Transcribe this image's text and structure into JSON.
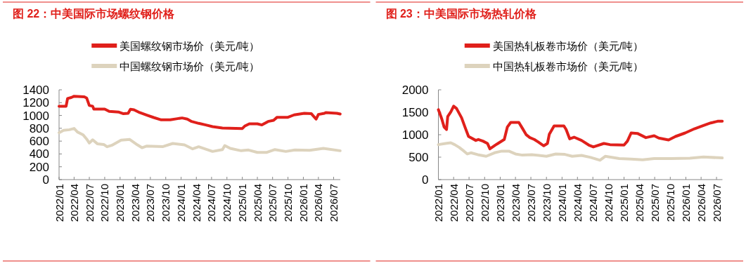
{
  "chart_data": [
    {
      "type": "line",
      "title": "图 22：中美国际市场螺纹钢价格",
      "legend": "top",
      "grid": false,
      "xlim": [
        "2022-01-01",
        "2026-08-10"
      ],
      "ylim": [
        0,
        1400
      ],
      "yticks": [
        0,
        200,
        400,
        600,
        800,
        1000,
        1200,
        1400
      ],
      "xticks": [
        {
          "value": "2022-01",
          "label": "2022/01"
        },
        {
          "value": "2022-04",
          "label": "2022/04"
        },
        {
          "value": "2022-07",
          "label": "2022/07"
        },
        {
          "value": "2022-10",
          "label": "2022/10"
        },
        {
          "value": "2023-01",
          "label": "2023/01"
        },
        {
          "value": "2023-04",
          "label": "2023/04"
        },
        {
          "value": "2023-07",
          "label": "2023/07"
        },
        {
          "value": "2023-10",
          "label": "2023/10"
        },
        {
          "value": "2024-01",
          "label": "2024/01"
        },
        {
          "value": "2024-04",
          "label": "2024/04"
        },
        {
          "value": "2024-07",
          "label": "2024/07"
        },
        {
          "value": "2024-10",
          "label": "2024/10"
        },
        {
          "value": "2025-01",
          "label": "2025/01"
        },
        {
          "value": "2025-04",
          "label": "2025/04"
        },
        {
          "value": "2025-07",
          "label": "2025/07"
        },
        {
          "value": "2025-10",
          "label": "2025/10"
        },
        {
          "value": "2026-01",
          "label": "2026/01"
        },
        {
          "value": "2026-04",
          "label": "2026/04"
        },
        {
          "value": "2026-07",
          "label": "2026/07"
        }
      ],
      "series": [
        {
          "name": "美国螺纹钢市场价（美元/吨）",
          "color": "#e0201b",
          "x": [
            "2022-01-01",
            "2022-02-12",
            "2022-02-21",
            "2022-03-15",
            "2022-04-01",
            "2022-06-01",
            "2022-06-15",
            "2022-07-01",
            "2022-07-21",
            "2022-07-28",
            "2022-10-01",
            "2022-10-28",
            "2022-12-25",
            "2023-01-21",
            "2023-02-18",
            "2023-03-04",
            "2023-03-25",
            "2023-04-28",
            "2023-06-10",
            "2023-07-21",
            "2023-09-04",
            "2023-10-28",
            "2023-12-10",
            "2024-01-07",
            "2024-02-07",
            "2024-03-04",
            "2024-04-15",
            "2024-05-28",
            "2024-07-07",
            "2024-09-04",
            "2025-01-01",
            "2025-01-15",
            "2025-02-12",
            "2025-04-01",
            "2025-04-28",
            "2025-06-04",
            "2025-07-07",
            "2025-07-28",
            "2025-10-01",
            "2025-11-07",
            "2026-01-07",
            "2026-02-18",
            "2026-03-18",
            "2026-04-01",
            "2026-05-07",
            "2026-05-15",
            "2026-07-21",
            "2026-08-09"
          ],
          "values": [
            1144,
            1144,
            1265,
            1280,
            1300,
            1290,
            1272,
            1155,
            1144,
            1100,
            1100,
            1063,
            1052,
            1027,
            1034,
            1096,
            1089,
            1045,
            1005,
            968,
            932,
            932,
            950,
            961,
            943,
            906,
            877,
            852,
            826,
            804,
            797,
            833,
            870,
            870,
            852,
            906,
            925,
            972,
            972,
            1009,
            1034,
            1027,
            943,
            1016,
            1034,
            1045,
            1034,
            1023
          ]
        },
        {
          "name": "中国螺纹钢市场价（美元/吨）",
          "color": "#ddd3bd",
          "x": [
            "2022-01-01",
            "2022-01-28",
            "2022-03-04",
            "2022-04-01",
            "2022-04-21",
            "2022-05-25",
            "2022-06-15",
            "2022-07-01",
            "2022-07-21",
            "2022-08-18",
            "2022-09-25",
            "2022-10-15",
            "2022-11-12",
            "2023-01-07",
            "2023-02-28",
            "2023-04-15",
            "2023-05-12",
            "2023-06-10",
            "2023-09-15",
            "2023-11-12",
            "2024-01-21",
            "2024-03-10",
            "2024-04-15",
            "2024-05-28",
            "2024-07-07",
            "2024-09-04",
            "2024-09-18",
            "2024-10-21",
            "2024-12-25",
            "2025-02-07",
            "2025-04-01",
            "2025-05-28",
            "2025-07-15",
            "2025-09-18",
            "2025-11-12",
            "2026-02-07",
            "2026-05-01",
            "2026-08-09"
          ],
          "values": [
            731,
            768,
            778,
            797,
            742,
            698,
            632,
            570,
            621,
            559,
            548,
            512,
            534,
            614,
            625,
            541,
            497,
            523,
            515,
            563,
            541,
            479,
            512,
            475,
            439,
            468,
            530,
            486,
            450,
            461,
            424,
            424,
            468,
            439,
            461,
            457,
            486,
            450
          ]
        }
      ]
    },
    {
      "type": "line",
      "title": "图 23：中美国际市场热轧价格",
      "legend": "top",
      "grid": false,
      "xlim": [
        "2022-01-01",
        "2026-08-05"
      ],
      "ylim": [
        0,
        2000
      ],
      "yticks": [
        0,
        500,
        1000,
        1500,
        2000
      ],
      "xticks": [
        {
          "value": "2022-01",
          "label": "2022/01"
        },
        {
          "value": "2022-04",
          "label": "2022/04"
        },
        {
          "value": "2022-07",
          "label": "2022/07"
        },
        {
          "value": "2022-10",
          "label": "2022/10"
        },
        {
          "value": "2023-01",
          "label": "2023/01"
        },
        {
          "value": "2023-04",
          "label": "2023/04"
        },
        {
          "value": "2023-07",
          "label": "2023/07"
        },
        {
          "value": "2023-10",
          "label": "2023/10"
        },
        {
          "value": "2024-01",
          "label": "2024/01"
        },
        {
          "value": "2024-04",
          "label": "2024/04"
        },
        {
          "value": "2024-07",
          "label": "2024/07"
        },
        {
          "value": "2024-10",
          "label": "2024/10"
        },
        {
          "value": "2025-01",
          "label": "2025/01"
        },
        {
          "value": "2025-04",
          "label": "2025/04"
        },
        {
          "value": "2025-07",
          "label": "2025/07"
        },
        {
          "value": "2025-10",
          "label": "2025/10"
        },
        {
          "value": "2026-01",
          "label": "2026/01"
        },
        {
          "value": "2026-04",
          "label": "2026/04"
        },
        {
          "value": "2026-07",
          "label": "2026/07"
        }
      ],
      "series": [
        {
          "name": "美国热轧板卷市场价（美元/吨）",
          "color": "#e0201b",
          "x": [
            "2022-01-01",
            "2022-01-21",
            "2022-02-04",
            "2022-02-18",
            "2022-02-25",
            "2022-03-15",
            "2022-04-01",
            "2022-04-18",
            "2022-05-18",
            "2022-06-07",
            "2022-06-28",
            "2022-08-10",
            "2022-08-25",
            "2022-09-21",
            "2022-10-18",
            "2022-11-01",
            "2022-12-12",
            "2023-01-25",
            "2023-02-12",
            "2023-03-04",
            "2023-04-21",
            "2023-05-12",
            "2023-06-04",
            "2023-06-25",
            "2023-07-21",
            "2023-08-12",
            "2023-09-15",
            "2023-10-07",
            "2023-10-18",
            "2023-11-15",
            "2024-01-12",
            "2024-01-25",
            "2024-02-15",
            "2024-03-12",
            "2024-04-25",
            "2024-06-07",
            "2024-07-04",
            "2024-09-04",
            "2024-10-10",
            "2025-01-01",
            "2025-01-21",
            "2025-02-12",
            "2025-03-21",
            "2025-05-10",
            "2025-06-28",
            "2025-07-25",
            "2025-09-21",
            "2025-11-01",
            "2025-12-28",
            "2026-02-21",
            "2026-04-15",
            "2026-05-28",
            "2026-06-10",
            "2026-07-07",
            "2026-08-04"
          ],
          "values": [
            1558,
            1351,
            1169,
            1117,
            1403,
            1506,
            1636,
            1584,
            1377,
            1169,
            961,
            873,
            894,
            857,
            805,
            686,
            790,
            894,
            1169,
            1273,
            1273,
            1143,
            997,
            935,
            894,
            842,
            753,
            805,
            1013,
            1195,
            1195,
            1117,
            909,
            945,
            873,
            769,
            727,
            805,
            779,
            769,
            857,
            1039,
            1029,
            935,
            977,
            925,
            883,
            961,
            1039,
            1132,
            1205,
            1262,
            1273,
            1299,
            1299
          ]
        },
        {
          "name": "中国热轧板卷市场价（美元/吨）",
          "color": "#ddd3bd",
          "x": [
            "2022-01-01",
            "2022-02-12",
            "2022-03-15",
            "2022-04-07",
            "2022-05-04",
            "2022-06-01",
            "2022-06-21",
            "2022-07-12",
            "2022-08-21",
            "2022-10-10",
            "2022-11-28",
            "2023-01-10",
            "2023-02-21",
            "2023-04-01",
            "2023-05-12",
            "2023-07-07",
            "2023-10-01",
            "2023-11-25",
            "2024-01-18",
            "2024-03-01",
            "2024-04-25",
            "2024-06-18",
            "2024-08-12",
            "2024-09-12",
            "2024-12-04",
            "2025-02-12",
            "2025-04-21",
            "2025-06-28",
            "2025-10-04",
            "2026-01-25",
            "2026-04-15",
            "2026-08-04"
          ],
          "values": [
            779,
            805,
            821,
            779,
            717,
            634,
            571,
            597,
            556,
            519,
            597,
            634,
            634,
            571,
            545,
            556,
            519,
            571,
            561,
            519,
            540,
            494,
            431,
            519,
            468,
            457,
            442,
            468,
            468,
            478,
            504,
            483
          ]
        }
      ]
    }
  ]
}
